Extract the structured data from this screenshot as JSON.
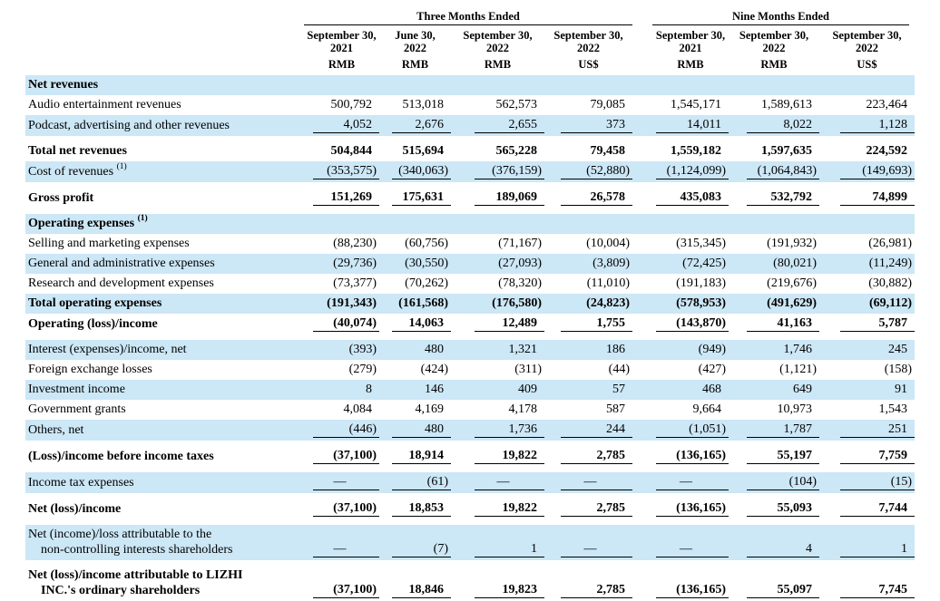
{
  "table": {
    "groups": [
      {
        "label": "Three Months Ended"
      },
      {
        "label": "Nine Months Ended"
      }
    ],
    "columns": [
      {
        "date_line1": "September 30,",
        "date_line2": "2021",
        "unit": "RMB"
      },
      {
        "date_line1": "June 30,",
        "date_line2": "2022",
        "unit": "RMB"
      },
      {
        "date_line1": "September 30,",
        "date_line2": "2022",
        "unit": "RMB"
      },
      {
        "date_line1": "September 30,",
        "date_line2": "2022",
        "unit": "US$"
      },
      {
        "date_line1": "September 30,",
        "date_line2": "2021",
        "unit": "RMB"
      },
      {
        "date_line1": "September 30,",
        "date_line2": "2022",
        "unit": "RMB"
      },
      {
        "date_line1": "September 30,",
        "date_line2": "2022",
        "unit": "US$"
      }
    ],
    "rows": [
      {
        "label": "Net revenues",
        "bold": true,
        "shaded": true,
        "underline": false,
        "values": [
          "",
          "",
          "",
          "",
          "",
          "",
          ""
        ]
      },
      {
        "label": "Audio entertainment revenues",
        "bold": false,
        "shaded": false,
        "underline": false,
        "values": [
          "500,792",
          "513,018",
          "562,573",
          "79,085",
          "1,545,171",
          "1,589,613",
          "223,464"
        ]
      },
      {
        "label": "Podcast, advertising and other revenues",
        "bold": false,
        "shaded": true,
        "underline": true,
        "values": [
          "4,052",
          "2,676",
          "2,655",
          "373",
          "14,011",
          "8,022",
          "1,128"
        ]
      },
      {
        "label": "Total net revenues",
        "bold": true,
        "shaded": false,
        "underline": false,
        "values": [
          "504,844",
          "515,694",
          "565,228",
          "79,458",
          "1,559,182",
          "1,597,635",
          "224,592"
        ]
      },
      {
        "label": "Cost of revenues",
        "footnote": "(1)",
        "bold": false,
        "shaded": true,
        "underline": true,
        "values": [
          "(353,575)",
          "(340,063)",
          "(376,159)",
          "(52,880)",
          "(1,124,099)",
          "(1,064,843)",
          "(149,693)"
        ]
      },
      {
        "label": "Gross profit",
        "bold": true,
        "shaded": false,
        "underline": true,
        "values": [
          "151,269",
          "175,631",
          "189,069",
          "26,578",
          "435,083",
          "532,792",
          "74,899"
        ]
      },
      {
        "label": "Operating expenses",
        "footnote": "(1)",
        "bold": true,
        "shaded": true,
        "underline": false,
        "values": [
          "",
          "",
          "",
          "",
          "",
          "",
          ""
        ]
      },
      {
        "label": "Selling and marketing expenses",
        "bold": false,
        "shaded": false,
        "underline": false,
        "values": [
          "(88,230)",
          "(60,756)",
          "(71,167)",
          "(10,004)",
          "(315,345)",
          "(191,932)",
          "(26,981)"
        ]
      },
      {
        "label": "General and administrative expenses",
        "bold": false,
        "shaded": true,
        "underline": false,
        "values": [
          "(29,736)",
          "(30,550)",
          "(27,093)",
          "(3,809)",
          "(72,425)",
          "(80,021)",
          "(11,249)"
        ]
      },
      {
        "label": "Research and development expenses",
        "bold": false,
        "shaded": false,
        "underline": false,
        "values": [
          "(73,377)",
          "(70,262)",
          "(78,320)",
          "(11,010)",
          "(191,183)",
          "(219,676)",
          "(30,882)"
        ]
      },
      {
        "label": "Total operating expenses",
        "bold": true,
        "shaded": true,
        "underline": false,
        "values": [
          "(191,343)",
          "(161,568)",
          "(176,580)",
          "(24,823)",
          "(578,953)",
          "(491,629)",
          "(69,112)"
        ]
      },
      {
        "label": "Operating (loss)/income",
        "bold": true,
        "shaded": false,
        "underline": true,
        "values": [
          "(40,074)",
          "14,063",
          "12,489",
          "1,755",
          "(143,870)",
          "41,163",
          "5,787"
        ]
      },
      {
        "label": "Interest (expenses)/income, net",
        "bold": false,
        "shaded": true,
        "underline": false,
        "values": [
          "(393)",
          "480",
          "1,321",
          "186",
          "(949)",
          "1,746",
          "245"
        ]
      },
      {
        "label": "Foreign exchange losses",
        "bold": false,
        "shaded": false,
        "underline": false,
        "values": [
          "(279)",
          "(424)",
          "(311)",
          "(44)",
          "(427)",
          "(1,121)",
          "(158)"
        ]
      },
      {
        "label": "Investment income",
        "bold": false,
        "shaded": true,
        "underline": false,
        "values": [
          "8",
          "146",
          "409",
          "57",
          "468",
          "649",
          "91"
        ]
      },
      {
        "label": "Government grants",
        "bold": false,
        "shaded": false,
        "underline": false,
        "values": [
          "4,084",
          "4,169",
          "4,178",
          "587",
          "9,664",
          "10,973",
          "1,543"
        ]
      },
      {
        "label": "Others, net",
        "bold": false,
        "shaded": true,
        "underline": true,
        "values": [
          "(446)",
          "480",
          "1,736",
          "244",
          "(1,051)",
          "1,787",
          "251"
        ]
      },
      {
        "label": "(Loss)/income before income taxes",
        "bold": true,
        "shaded": false,
        "underline": true,
        "values": [
          "(37,100)",
          "18,914",
          "19,822",
          "2,785",
          "(136,165)",
          "55,197",
          "7,759"
        ]
      },
      {
        "label": "Income tax expenses",
        "bold": false,
        "shaded": true,
        "underline": true,
        "values": [
          "—",
          "(61)",
          "—",
          "—",
          "—",
          "(104)",
          "(15)"
        ]
      },
      {
        "label": "Net (loss)/income",
        "bold": true,
        "shaded": false,
        "underline": true,
        "values": [
          "(37,100)",
          "18,853",
          "19,822",
          "2,785",
          "(136,165)",
          "55,093",
          "7,744"
        ]
      },
      {
        "label": "Net (income)/loss attributable to the",
        "label2": "non-controlling interests shareholders",
        "bold": false,
        "shaded": true,
        "underline": true,
        "values": [
          "—",
          "(7)",
          "1",
          "—",
          "—",
          "4",
          "1"
        ]
      },
      {
        "label": "Net (loss)/income attributable to LIZHI",
        "label2": "INC.'s ordinary shareholders",
        "bold": true,
        "shaded": false,
        "underline": true,
        "values": [
          "(37,100)",
          "18,846",
          "19,823",
          "2,785",
          "(136,165)",
          "55,097",
          "7,745"
        ]
      }
    ]
  }
}
